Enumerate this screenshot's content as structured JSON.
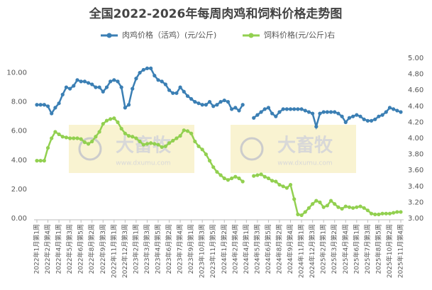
{
  "chart_data": {
    "type": "line",
    "title": "全国2022-2026年每周肉鸡和饲料价格走势图",
    "watermark": [
      "大畜牧",
      "www.dxumu.com"
    ],
    "categories": [
      "2022年1月第1周",
      null,
      null,
      "2022年2月第4周",
      null,
      null,
      "2022年4月第1周",
      null,
      null,
      "2022年5月第3周",
      null,
      null,
      "2022年6月第5周",
      null,
      null,
      "2022年8月第2周",
      null,
      null,
      "2022年9月第3周",
      null,
      null,
      "2022年11月第1周",
      null,
      null,
      "2022年12月第3周",
      null,
      null,
      "2023年2月第1周",
      null,
      null,
      "2023年3月第3周",
      null,
      null,
      "2023年4月第5周",
      null,
      null,
      "2023年6月第2周",
      null,
      null,
      "2023年7月第4周",
      null,
      null,
      "2023年9月第1周",
      null,
      null,
      "2023年10月第3周",
      null,
      null,
      "2023年11月第5周",
      null,
      null,
      "2024年1月第2周",
      null,
      null,
      "2024年2月第4周",
      null,
      null,
      "2024年4月第1周",
      null,
      null,
      "2024年5月第3周",
      null,
      null,
      "2024年6月第5周",
      null,
      null,
      "2024年8月第2周",
      null,
      null,
      "2024年9月第4周",
      null,
      null,
      "2024年11月第1周",
      null,
      null,
      "2024年12月第3周",
      null,
      null,
      "2025年2月第1周",
      null,
      null,
      "2025年3月第2周",
      null,
      null,
      "2025年4月第4周",
      null,
      null,
      "2025年6月第1周",
      null,
      null,
      "2025年7月第3周",
      null,
      null,
      "2025年8月第5周",
      null,
      null,
      "2025年10月第2周",
      null,
      null,
      "2025年11月第4周"
    ],
    "series": [
      {
        "name": "肉鸡价格（活鸡）(元/公斤)",
        "color": "#3b7fb4",
        "values": [
          7.8,
          7.8,
          7.8,
          7.7,
          7.2,
          7.6,
          7.9,
          8.5,
          9.0,
          8.9,
          9.1,
          9.5,
          9.4,
          9.4,
          9.3,
          9.2,
          9.0,
          9.0,
          8.7,
          9.0,
          9.4,
          9.5,
          9.4,
          9.0,
          7.6,
          7.8,
          8.9,
          9.6,
          10.0,
          10.2,
          10.3,
          10.3,
          9.8,
          9.5,
          9.4,
          9.2,
          8.8,
          8.6,
          8.6,
          9.0,
          8.7,
          8.4,
          8.2,
          8.0,
          7.9,
          7.8,
          7.8,
          8.0,
          7.7,
          7.8,
          8.0,
          8.1,
          8.0,
          7.5,
          7.6,
          7.4,
          7.8,
          null,
          null,
          6.9,
          7.1,
          7.3,
          7.5,
          7.6,
          7.2,
          7.0,
          7.3,
          7.5,
          7.5,
          7.5,
          7.5,
          7.5,
          7.5,
          7.4,
          7.3,
          7.2,
          6.3,
          7.2,
          7.3,
          7.3,
          7.3,
          7.3,
          7.2,
          7.0,
          6.6,
          6.9,
          7.0,
          7.1,
          7.0,
          6.8,
          6.7,
          6.7,
          6.8,
          7.0,
          7.1,
          7.3,
          7.6,
          7.5,
          7.4,
          7.3
        ]
      },
      {
        "name": "饲料价格(元/公斤)右",
        "color": "#92d050",
        "axis": "y2",
        "values": [
          3.72,
          3.72,
          3.72,
          3.88,
          4.0,
          4.08,
          4.05,
          4.02,
          4.01,
          4.0,
          4.0,
          4.0,
          3.99,
          3.95,
          3.93,
          3.96,
          4.02,
          4.08,
          4.18,
          4.22,
          4.24,
          4.25,
          4.2,
          4.12,
          4.06,
          4.03,
          4.02,
          4.0,
          3.96,
          3.92,
          3.93,
          3.94,
          3.93,
          3.92,
          3.89,
          3.9,
          3.94,
          3.97,
          4.0,
          4.03,
          4.1,
          4.09,
          4.06,
          3.96,
          3.9,
          3.86,
          3.8,
          3.72,
          3.64,
          3.58,
          3.54,
          3.5,
          3.48,
          3.5,
          3.52,
          3.5,
          3.46,
          null,
          null,
          3.53,
          3.54,
          3.55,
          3.52,
          3.5,
          3.47,
          3.46,
          3.42,
          3.4,
          3.38,
          3.42,
          3.24,
          3.05,
          3.04,
          3.08,
          3.13,
          3.18,
          3.22,
          3.2,
          3.14,
          3.16,
          3.22,
          3.18,
          3.14,
          3.12,
          3.15,
          3.14,
          3.13,
          3.14,
          3.15,
          3.13,
          3.1,
          3.06,
          3.05,
          3.05,
          3.06,
          3.06,
          3.06,
          3.07,
          3.08,
          3.08
        ]
      }
    ],
    "ylim": [
      0,
      11
    ],
    "yticks": [
      {
        "value": 0,
        "label": "0.00"
      },
      {
        "value": 2,
        "label": "2.00"
      },
      {
        "value": 4,
        "label": "4.00"
      },
      {
        "value": 6,
        "label": "6.00"
      },
      {
        "value": 8,
        "label": "8.00"
      },
      {
        "value": 10,
        "label": "10.00"
      }
    ],
    "y2lim": [
      3,
      5
    ],
    "y2ticks": [
      {
        "value": 3,
        "label": "3.00"
      },
      {
        "value": 3.2,
        "label": "3.20"
      },
      {
        "value": 3.4,
        "label": "3.40"
      },
      {
        "value": 3.6,
        "label": "3.60"
      },
      {
        "value": 3.8,
        "label": "3.80"
      },
      {
        "value": 4,
        "label": "4.00"
      },
      {
        "value": 4.2,
        "label": "4.20"
      },
      {
        "value": 4.4,
        "label": "4.40"
      },
      {
        "value": 4.6,
        "label": "4.60"
      },
      {
        "value": 4.8,
        "label": "4.80"
      },
      {
        "value": 5,
        "label": "5.00"
      }
    ],
    "legend": "top"
  }
}
